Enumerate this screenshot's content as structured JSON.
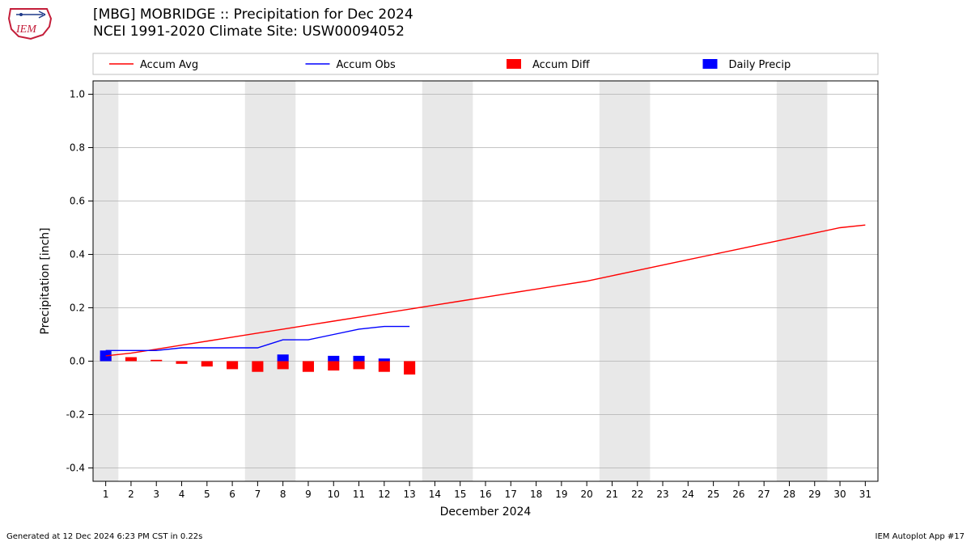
{
  "title_line1": "[MBG] MOBRIDGE :: Precipitation for Dec 2024",
  "title_line2": "NCEI 1991-2020 Climate Site: USW00094052",
  "footer_left": "Generated at 12 Dec 2024 6:23 PM CST in 0.22s",
  "footer_right": "IEM Autoplot App #17",
  "chart": {
    "type": "line+bar",
    "x_label": "December 2024",
    "y_label": "Precipitation [inch]",
    "x_days": [
      1,
      2,
      3,
      4,
      5,
      6,
      7,
      8,
      9,
      10,
      11,
      12,
      13,
      14,
      15,
      16,
      17,
      18,
      19,
      20,
      21,
      22,
      23,
      24,
      25,
      26,
      27,
      28,
      29,
      30,
      31
    ],
    "ylim": [
      -0.45,
      1.05
    ],
    "yticks": [
      -0.4,
      -0.2,
      0.0,
      0.2,
      0.4,
      0.6,
      0.8,
      1.0
    ],
    "plot_bg": "#ffffff",
    "grid_color": "#b0b0b0",
    "weekend_band_color": "#e8e8e8",
    "weekend_days": [
      [
        1,
        1
      ],
      [
        7,
        8
      ],
      [
        14,
        15
      ],
      [
        21,
        22
      ],
      [
        28,
        29
      ]
    ],
    "legend": {
      "items": [
        {
          "label": "Accum Avg",
          "type": "line",
          "color": "#ff0000"
        },
        {
          "label": "Accum Obs",
          "type": "line",
          "color": "#0000ff"
        },
        {
          "label": "Accum Diff",
          "type": "swatch",
          "color": "#ff0000"
        },
        {
          "label": "Daily Precip",
          "type": "swatch",
          "color": "#0000ff"
        }
      ],
      "border_color": "#bfbfbf",
      "bg": "#ffffff",
      "fontsize": 13
    },
    "series": {
      "accum_avg": {
        "color": "#ff0000",
        "linewidth": 1.4,
        "data": [
          0.02,
          0.03,
          0.045,
          0.06,
          0.075,
          0.09,
          0.105,
          0.12,
          0.135,
          0.15,
          0.165,
          0.18,
          0.195,
          0.21,
          0.225,
          0.24,
          0.255,
          0.27,
          0.285,
          0.3,
          0.32,
          0.34,
          0.36,
          0.38,
          0.4,
          0.42,
          0.44,
          0.46,
          0.48,
          0.5,
          0.51
        ]
      },
      "accum_obs": {
        "color": "#0000ff",
        "linewidth": 1.4,
        "data": [
          0.04,
          0.04,
          0.04,
          0.05,
          0.05,
          0.05,
          0.05,
          0.08,
          0.08,
          0.1,
          0.12,
          0.13,
          0.13
        ]
      },
      "accum_diff": {
        "color": "#ff0000",
        "bar_width": 0.45,
        "data": [
          0.02,
          0.015,
          0.005,
          -0.01,
          -0.02,
          -0.03,
          -0.04,
          -0.03,
          -0.04,
          -0.035,
          -0.03,
          -0.04,
          -0.05
        ]
      },
      "daily_precip": {
        "color": "#0000ff",
        "bar_width": 0.45,
        "data": [
          0.04,
          0,
          0,
          0,
          0,
          0,
          0,
          0.025,
          0,
          0.02,
          0.02,
          0.01,
          0
        ]
      }
    },
    "axis_color": "#000000",
    "tick_fontsize": 12,
    "label_fontsize": 14,
    "title_fontsize": 17
  },
  "logo_colors": {
    "outline": "#c41e3a",
    "symbol": "#1e3a8a"
  }
}
